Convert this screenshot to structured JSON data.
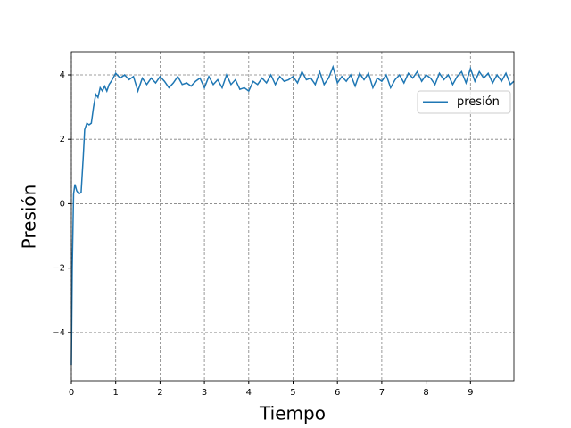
{
  "chart_data": {
    "type": "line",
    "xlabel": "Tiempo",
    "ylabel": "Presión",
    "x": [
      0,
      0.02,
      0.05,
      0.08,
      0.12,
      0.17,
      0.22,
      0.27,
      0.3,
      0.35,
      0.4,
      0.45,
      0.5,
      0.55,
      0.6,
      0.65,
      0.7,
      0.75,
      0.8,
      0.85,
      0.9,
      1.0,
      1.1,
      1.2,
      1.3,
      1.4,
      1.5,
      1.6,
      1.7,
      1.8,
      1.9,
      2.0,
      2.1,
      2.2,
      2.3,
      2.4,
      2.5,
      2.6,
      2.7,
      2.8,
      2.9,
      3.0,
      3.1,
      3.2,
      3.3,
      3.4,
      3.5,
      3.6,
      3.7,
      3.8,
      3.9,
      4.0,
      4.1,
      4.2,
      4.3,
      4.4,
      4.5,
      4.6,
      4.7,
      4.8,
      4.9,
      5.0,
      5.1,
      5.2,
      5.3,
      5.4,
      5.5,
      5.6,
      5.7,
      5.8,
      5.9,
      6.0,
      6.1,
      6.2,
      6.3,
      6.4,
      6.5,
      6.6,
      6.7,
      6.8,
      6.9,
      7.0,
      7.1,
      7.2,
      7.3,
      7.4,
      7.5,
      7.6,
      7.7,
      7.8,
      7.9,
      8.0,
      8.1,
      8.2,
      8.3,
      8.4,
      8.5,
      8.6,
      8.7,
      8.8,
      8.9,
      9.0,
      9.1,
      9.2,
      9.3,
      9.4,
      9.5,
      9.6,
      9.7,
      9.8,
      9.9,
      9.98
    ],
    "series": [
      {
        "name": "presión",
        "color": "#1f77b4",
        "values": [
          -5.0,
          -2.0,
          0.3,
          0.6,
          0.4,
          0.3,
          0.35,
          1.5,
          2.3,
          2.5,
          2.45,
          2.5,
          3.0,
          3.4,
          3.3,
          3.6,
          3.5,
          3.65,
          3.5,
          3.7,
          3.8,
          4.05,
          3.9,
          4.0,
          3.85,
          3.95,
          3.5,
          3.9,
          3.7,
          3.9,
          3.75,
          3.95,
          3.8,
          3.6,
          3.75,
          3.95,
          3.7,
          3.75,
          3.65,
          3.8,
          3.9,
          3.6,
          3.95,
          3.7,
          3.85,
          3.6,
          4.0,
          3.7,
          3.85,
          3.55,
          3.6,
          3.5,
          3.8,
          3.7,
          3.9,
          3.75,
          4.0,
          3.7,
          3.95,
          3.8,
          3.85,
          3.95,
          3.75,
          4.1,
          3.85,
          3.9,
          3.7,
          4.1,
          3.7,
          3.9,
          4.25,
          3.75,
          3.95,
          3.8,
          4.0,
          3.65,
          4.05,
          3.85,
          4.05,
          3.6,
          3.9,
          3.8,
          4.0,
          3.6,
          3.85,
          4.0,
          3.75,
          4.05,
          3.9,
          4.1,
          3.8,
          4.0,
          3.9,
          3.7,
          4.05,
          3.85,
          4.0,
          3.7,
          3.95,
          4.1,
          3.75,
          4.2,
          3.8,
          4.1,
          3.9,
          4.05,
          3.75,
          4.0,
          3.8,
          4.05,
          3.7,
          3.8
        ]
      }
    ],
    "xlim": [
      0,
      9.98
    ],
    "ylim": [
      -5.5,
      4.72
    ],
    "xticks": [
      0,
      1,
      2,
      3,
      4,
      5,
      6,
      7,
      8,
      9
    ],
    "yticks": [
      {
        "value": -4,
        "label": "−4"
      },
      {
        "value": -2,
        "label": "−2"
      },
      0,
      2,
      4
    ],
    "grid": true,
    "legend": "upper right"
  }
}
